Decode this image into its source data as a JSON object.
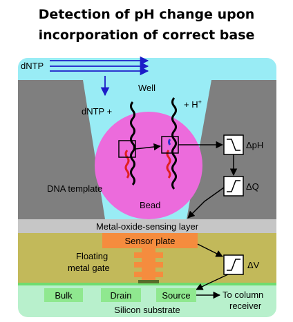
{
  "title": {
    "line1": "Detection of pH change upon",
    "line2": "incorporation of correct base"
  },
  "labels": {
    "dntp_top": "dNTP",
    "well": "Well",
    "dntp_plus": "dNTP +",
    "h_plus": "+ H",
    "h_plus_sup": "+",
    "delta_ph": "ΔpH",
    "delta_q": "ΔQ",
    "dna_template": "DNA template",
    "bead": "Bead",
    "metal_oxide_layer": "Metal-oxide-sensing layer",
    "sensor_plate": "Sensor plate",
    "floating_gate_line1": "Floating",
    "floating_gate_line2": "metal gate",
    "delta_v": "ΔV",
    "bulk": "Bulk",
    "drain": "Drain",
    "source": "Source",
    "to_column_line1": "To column",
    "to_column_line2": "receiver",
    "silicon_substrate": "Silicon substrate"
  },
  "colors": {
    "solution": "#99ecf5",
    "well_wall": "#7f7f7f",
    "bead": "#ec6bdc",
    "oxide_layer": "#c6c6c6",
    "insulator": "#c2b95a",
    "sensor_plate": "#f58c3e",
    "substrate": "#b8f0cc",
    "terminals": "#8fe88f",
    "arrows_blue": "#1c1cc8",
    "new_base": "#e02020",
    "incorporated_base": "#3030d0"
  }
}
